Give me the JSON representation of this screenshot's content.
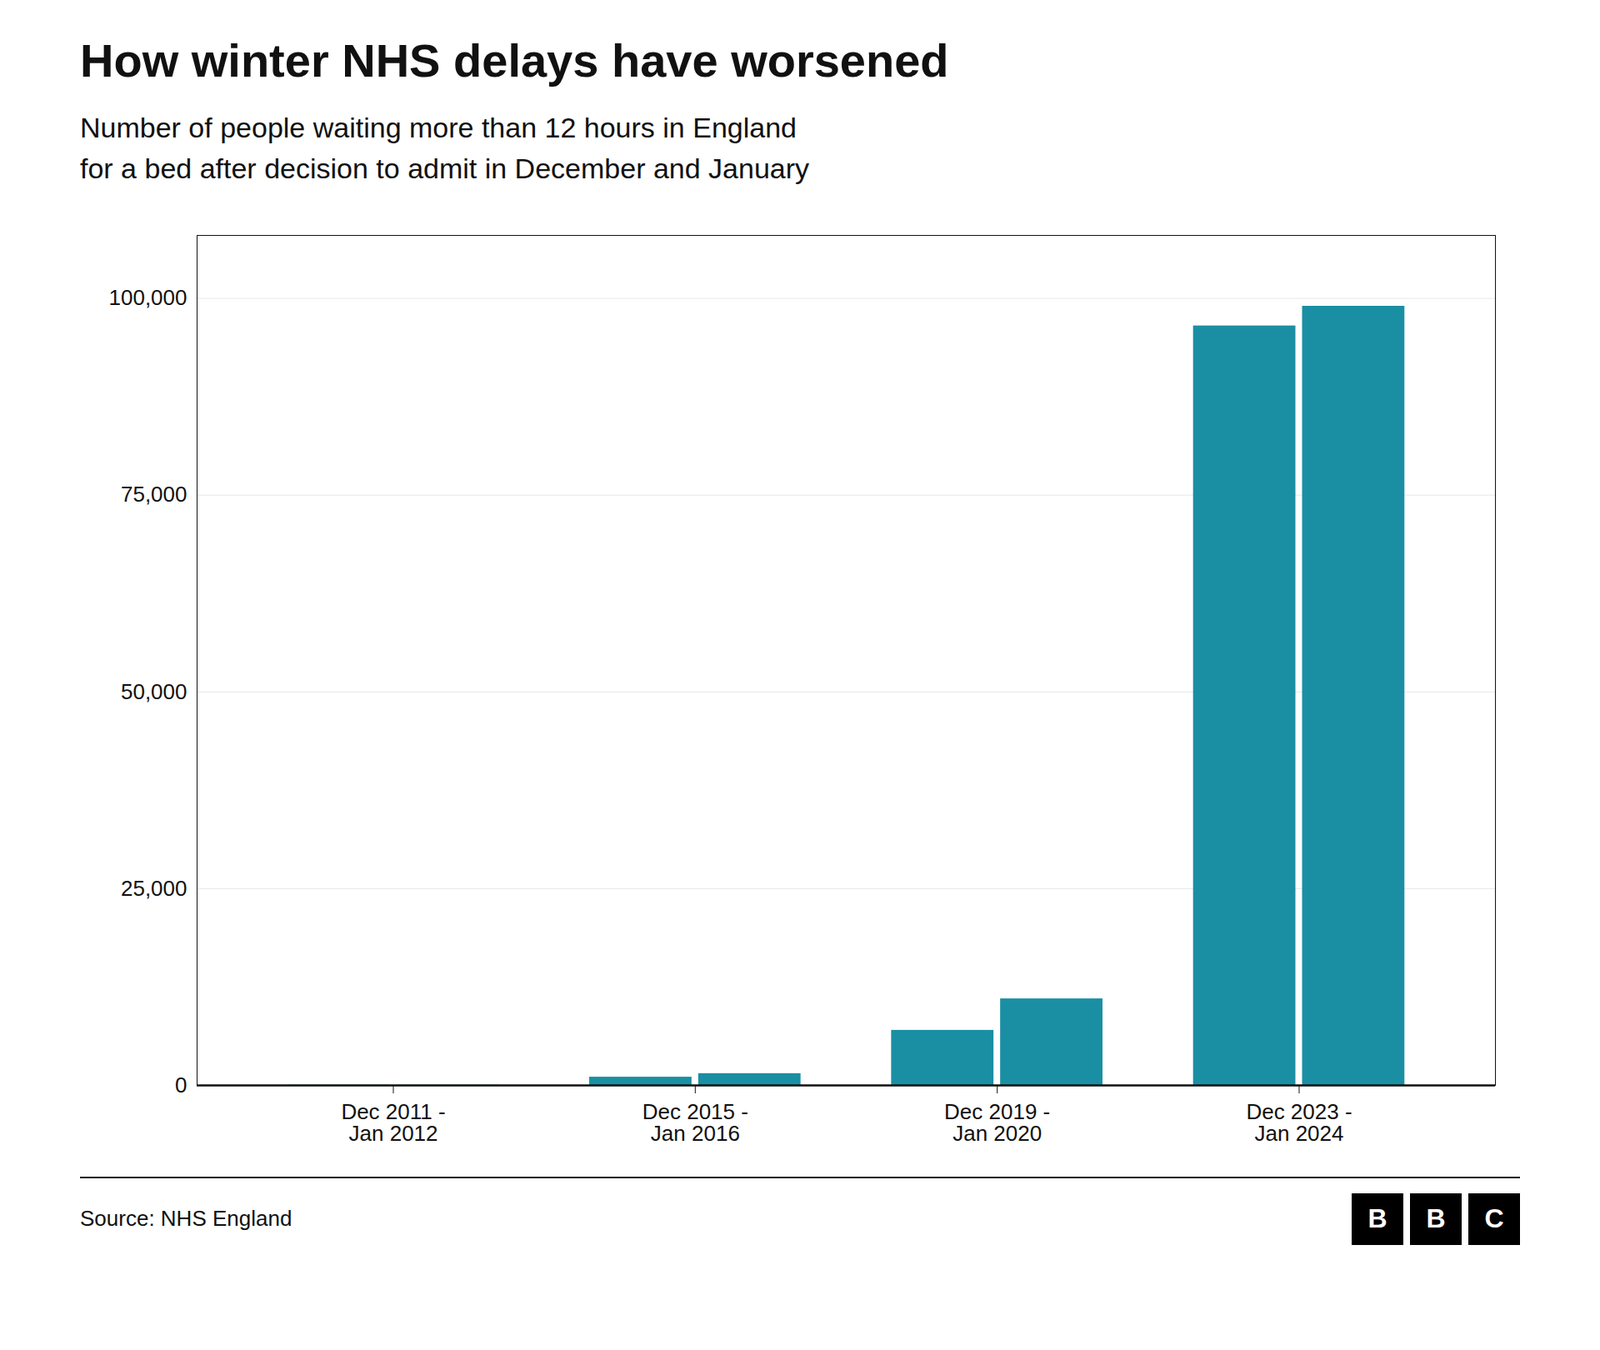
{
  "chart_data": {
    "type": "bar",
    "title": "How winter NHS delays have worsened",
    "subtitle": "Number of people waiting more than 12 hours in England\nfor a bed after decision to admit in December and January",
    "source": "Source: NHS England",
    "logo": "BBC",
    "categories": [
      "Dec 2011 -\nJan 2012",
      "Dec 2015 -\nJan 2016",
      "Dec 2019 -\nJan 2020",
      "Dec 2023 -\nJan 2024"
    ],
    "series": [
      {
        "color": "#1a8fa3",
        "values": [
          30,
          1050,
          7000,
          96500
        ]
      },
      {
        "color": "#1a8fa3",
        "values": [
          30,
          1500,
          11000,
          99000
        ]
      }
    ],
    "ylim": [
      0,
      108000
    ],
    "yticks": [
      0,
      {
        "value": 25000,
        "label": "25,000"
      },
      {
        "value": 50000,
        "label": "50,000"
      },
      {
        "value": 75000,
        "label": "75,000"
      },
      {
        "value": 100000,
        "label": "100,000"
      }
    ],
    "grid": true
  }
}
